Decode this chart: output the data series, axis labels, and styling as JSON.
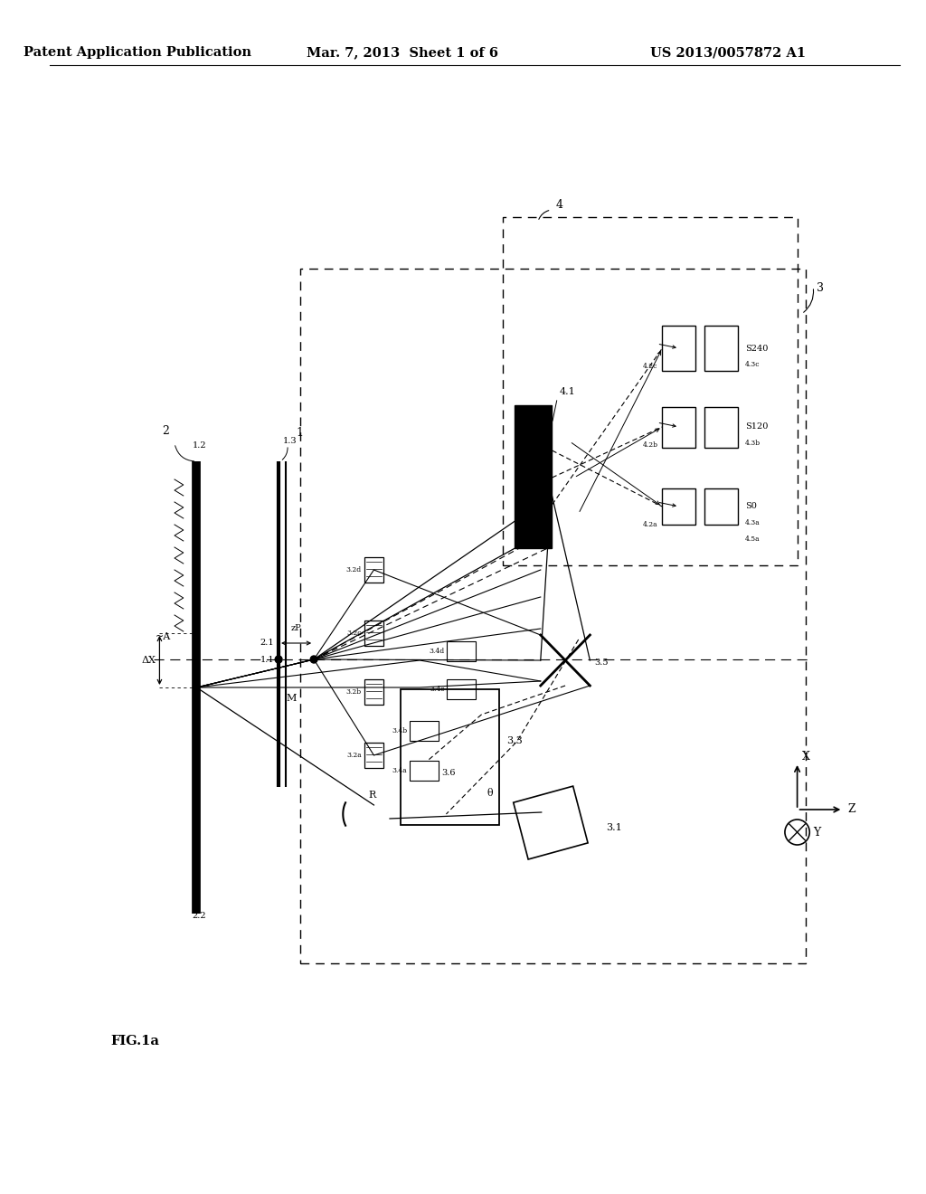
{
  "bg_color": "#ffffff",
  "header_left": "Patent Application Publication",
  "header_center": "Mar. 7, 2013  Sheet 1 of 6",
  "header_right": "US 2013/0057872 A1",
  "figure_label": "FIG.1a",
  "header_fontsize": 10.5,
  "label_fontsize": 9,
  "small_fontsize": 8,
  "tiny_fontsize": 7
}
